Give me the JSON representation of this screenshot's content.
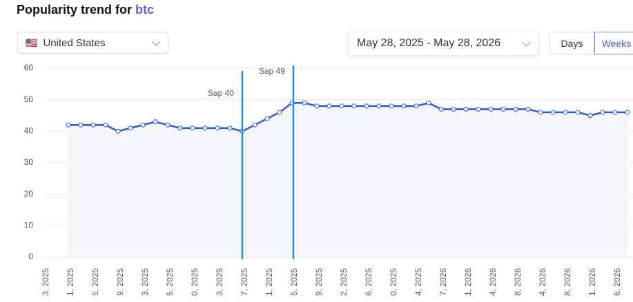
{
  "header": {
    "title": "Popularity trend for",
    "keyword": "btc"
  },
  "controls": {
    "flag": "🇺🇸",
    "country": "United States",
    "date_range": "May 28, 2025 - May 28, 2026",
    "buttons": [
      "Days",
      "Weeks"
    ]
  },
  "chart_data": {
    "type": "line",
    "categories": [
      "3, 2025",
      null,
      "1, 2025",
      null,
      "5, 2025",
      null,
      "9, 2025",
      null,
      "3, 2025",
      null,
      "5, 2025",
      null,
      "0, 2025",
      null,
      "3, 2025",
      null,
      "7, 2025",
      null,
      "1, 2025",
      null,
      "5, 2025",
      null,
      "9, 2025",
      null,
      "2, 2025",
      null,
      "6, 2025",
      null,
      "0, 2025",
      null,
      "4, 2025",
      null,
      "7, 2026",
      null,
      "1, 2026",
      null,
      "4, 2026",
      null,
      "8, 2026",
      null,
      "4, 2026",
      null,
      "8, 2026",
      null,
      "1, 2026",
      null,
      "6, 2026",
      null
    ],
    "series": [
      {
        "name": "btc",
        "color": "#2f56e0",
        "values": [
          null,
          null,
          42,
          42,
          42,
          42,
          40,
          41,
          42,
          43,
          42,
          41,
          41,
          41,
          41,
          41,
          40,
          42,
          44,
          46,
          49,
          49,
          48,
          48,
          48,
          48,
          48,
          48,
          48,
          48,
          48,
          49,
          47,
          47,
          47,
          47,
          47,
          47,
          47,
          47,
          46,
          46,
          46,
          46,
          45,
          46,
          46,
          46
        ]
      }
    ],
    "ylim": [
      0,
      60
    ],
    "yticks": [
      0,
      10,
      20,
      30,
      40,
      50,
      60
    ],
    "grid": true,
    "annotations": [
      {
        "label": "Sap 40",
        "index": 16,
        "color": "#1e8fe0"
      },
      {
        "label": "Sap 49",
        "index": 20,
        "color": "#1e8fe0"
      }
    ]
  }
}
